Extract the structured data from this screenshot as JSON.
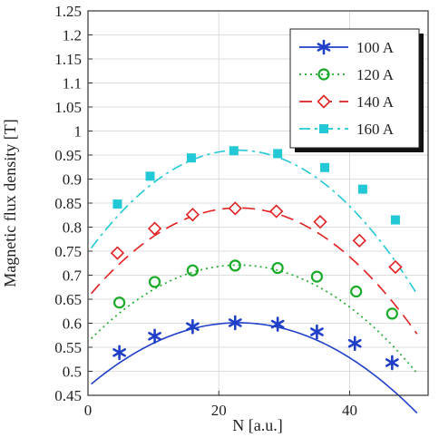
{
  "chart_data": {
    "type": "line",
    "xlabel": "N [a.u.]",
    "ylabel": "Magnetic flux density [T]",
    "xlim": [
      0,
      52
    ],
    "ylim": [
      0.45,
      1.25
    ],
    "x_ticks": [
      {
        "value": 0,
        "label": "0"
      },
      {
        "value": 20,
        "label": "20"
      },
      {
        "value": 40,
        "label": "40"
      }
    ],
    "y_ticks": [
      {
        "value": 0.45,
        "label": "0.45"
      },
      {
        "value": 0.5,
        "label": "0.5"
      },
      {
        "value": 0.55,
        "label": "0.55"
      },
      {
        "value": 0.6,
        "label": "0.6"
      },
      {
        "value": 0.65,
        "label": "0.65"
      },
      {
        "value": 0.7,
        "label": "0.7"
      },
      {
        "value": 0.75,
        "label": "0.75"
      },
      {
        "value": 0.8,
        "label": "0.8"
      },
      {
        "value": 0.85,
        "label": "0.85"
      },
      {
        "value": 0.9,
        "label": "0.9"
      },
      {
        "value": 0.95,
        "label": "0.95"
      },
      {
        "value": 1.0,
        "label": "1"
      },
      {
        "value": 1.05,
        "label": "1.05"
      },
      {
        "value": 1.1,
        "label": "1.1"
      },
      {
        "value": 1.15,
        "label": "1.15"
      },
      {
        "value": 1.2,
        "label": "1.2"
      },
      {
        "value": 1.25,
        "label": "1.25"
      }
    ],
    "grid": true,
    "legend_position": "top-right",
    "curve_x_range": [
      0.5,
      50.3
    ],
    "series": [
      {
        "name": "100 A",
        "color": "#1f3fc8",
        "marker": "asterisk",
        "line_style": "solid",
        "curve": {
          "a": -0.000252,
          "peak_x": 23.0,
          "peak_y": 0.601
        },
        "points": [
          [
            4.8,
            0.539
          ],
          [
            10.2,
            0.573
          ],
          [
            16.0,
            0.593
          ],
          [
            22.5,
            0.601
          ],
          [
            29.0,
            0.598
          ],
          [
            35.0,
            0.582
          ],
          [
            40.8,
            0.558
          ],
          [
            46.5,
            0.518
          ]
        ]
      },
      {
        "name": "120 A",
        "color": "#1aaa2a",
        "marker": "circle",
        "line_style": "dotted",
        "curve": {
          "a": -0.000302,
          "peak_x": 23.0,
          "peak_y": 0.721
        },
        "points": [
          [
            4.8,
            0.643
          ],
          [
            10.2,
            0.686
          ],
          [
            16.0,
            0.71
          ],
          [
            22.5,
            0.72
          ],
          [
            29.0,
            0.715
          ],
          [
            35.0,
            0.697
          ],
          [
            41.0,
            0.666
          ],
          [
            46.5,
            0.62
          ]
        ]
      },
      {
        "name": "140 A",
        "color": "#e02020",
        "marker": "diamond",
        "line_style": "dashed",
        "curve": {
          "a": -0.000352,
          "peak_x": 23.0,
          "peak_y": 0.84
        },
        "points": [
          [
            4.5,
            0.746
          ],
          [
            10.2,
            0.797
          ],
          [
            16.0,
            0.826
          ],
          [
            22.5,
            0.839
          ],
          [
            28.8,
            0.833
          ],
          [
            35.5,
            0.811
          ],
          [
            41.5,
            0.772
          ],
          [
            47.0,
            0.717
          ]
        ]
      },
      {
        "name": "160 A",
        "color": "#22c8d6",
        "marker": "square",
        "line_style": "dashdot",
        "curve": {
          "a": -0.000402,
          "peak_x": 23.0,
          "peak_y": 0.96
        },
        "points": [
          [
            4.5,
            0.848
          ],
          [
            9.5,
            0.906
          ],
          [
            15.8,
            0.944
          ],
          [
            22.3,
            0.959
          ],
          [
            29.0,
            0.953
          ],
          [
            36.2,
            0.924
          ],
          [
            42.0,
            0.879
          ],
          [
            47.0,
            0.815
          ]
        ]
      }
    ]
  }
}
